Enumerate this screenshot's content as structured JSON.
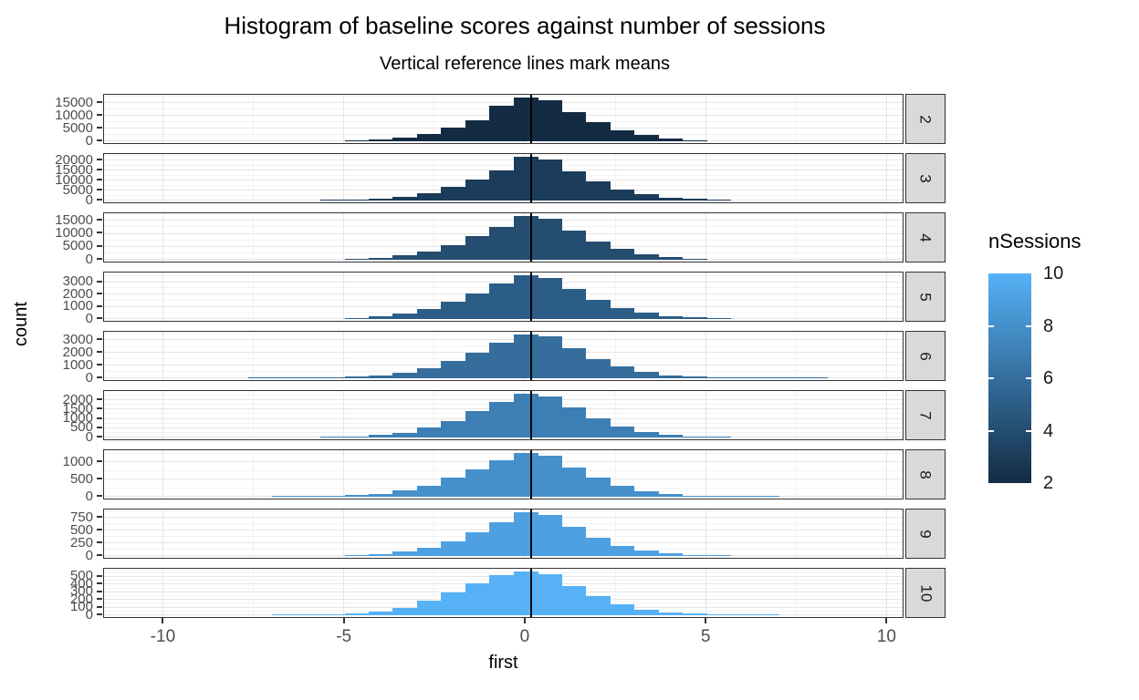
{
  "chart_data": {
    "type": "bar",
    "title": "Histogram of baseline scores against number of sessions",
    "subtitle": "Vertical reference lines mark means",
    "xlabel": "first",
    "ylabel": "count",
    "x_ticks": [
      -10,
      -5,
      0,
      5,
      10
    ],
    "x_minor_ticks": [
      -7.5,
      -2.5,
      2.5,
      7.5
    ],
    "x_range": [
      -11.65,
      10.47
    ],
    "bin_start": -7.633,
    "bin_width": 0.667,
    "grid": true,
    "legend_position": "right",
    "facets": [
      {
        "label": "2",
        "nSessions": 2,
        "fill": "#132B43",
        "mean": 0.2,
        "y_ticks": [
          15000,
          10000,
          5000,
          0
        ],
        "counts": [
          0,
          0,
          0,
          0,
          150,
          500,
          1300,
          2700,
          5100,
          8300,
          13800,
          17000,
          16200,
          11400,
          7400,
          4300,
          2300,
          1000,
          350,
          0,
          0,
          0,
          0,
          0
        ]
      },
      {
        "label": "3",
        "nSessions": 3,
        "fill": "#1B3C5A",
        "mean": 0.2,
        "y_ticks": [
          20000,
          15000,
          10000,
          5000,
          0
        ],
        "counts": [
          0,
          0,
          0,
          100,
          300,
          800,
          1800,
          3600,
          6500,
          10400,
          15000,
          21500,
          20400,
          14500,
          9300,
          5400,
          2900,
          1400,
          600,
          200,
          0,
          0,
          0,
          0
        ]
      },
      {
        "label": "4",
        "nSessions": 4,
        "fill": "#244D70",
        "mean": 0.2,
        "y_ticks": [
          15000,
          10000,
          5000,
          0
        ],
        "counts": [
          0,
          0,
          0,
          0,
          200,
          600,
          1500,
          3100,
          5600,
          8900,
          12600,
          16500,
          15600,
          11000,
          7000,
          4000,
          2100,
          900,
          300,
          0,
          0,
          0,
          0,
          0
        ]
      },
      {
        "label": "5",
        "nSessions": 5,
        "fill": "#2C5D87",
        "mean": 0.2,
        "y_ticks": [
          3000,
          2000,
          1000,
          0
        ],
        "counts": [
          0,
          0,
          0,
          0,
          80,
          200,
          430,
          820,
          1380,
          2050,
          2850,
          3500,
          3320,
          2400,
          1550,
          900,
          480,
          220,
          90,
          30,
          0,
          0,
          0,
          0
        ]
      },
      {
        "label": "6",
        "nSessions": 6,
        "fill": "#356E9D",
        "mean": 0.2,
        "y_ticks": [
          3000,
          2000,
          1000,
          0
        ],
        "counts": [
          10,
          15,
          20,
          40,
          90,
          200,
          420,
          800,
          1350,
          2000,
          2800,
          3400,
          3250,
          2350,
          1500,
          880,
          460,
          210,
          90,
          45,
          25,
          15,
          10,
          8
        ]
      },
      {
        "label": "7",
        "nSessions": 7,
        "fill": "#3D7FB4",
        "mean": 0.2,
        "y_ticks": [
          2000,
          1500,
          1000,
          500,
          0
        ],
        "counts": [
          0,
          0,
          0,
          15,
          40,
          110,
          250,
          500,
          880,
          1380,
          1900,
          2300,
          2180,
          1570,
          990,
          560,
          290,
          130,
          50,
          18,
          0,
          0,
          0,
          0
        ]
      },
      {
        "label": "8",
        "nSessions": 8,
        "fill": "#4590CA",
        "mean": 0.2,
        "y_ticks": [
          1000,
          500,
          0
        ],
        "counts": [
          0,
          5,
          8,
          15,
          35,
          80,
          170,
          320,
          540,
          790,
          1060,
          1250,
          1180,
          850,
          540,
          310,
          160,
          75,
          30,
          14,
          8,
          5,
          0,
          0
        ]
      },
      {
        "label": "9",
        "nSessions": 9,
        "fill": "#4EA0E1",
        "mean": 0.2,
        "y_ticks": [
          750,
          500,
          250,
          0
        ],
        "counts": [
          0,
          0,
          0,
          0,
          10,
          30,
          75,
          160,
          290,
          460,
          660,
          850,
          800,
          570,
          360,
          200,
          100,
          42,
          15,
          6,
          0,
          0,
          0,
          0
        ]
      },
      {
        "label": "10",
        "nSessions": 10,
        "fill": "#56B1F7",
        "mean": 0.2,
        "y_ticks": [
          500,
          400,
          300,
          200,
          100,
          0
        ],
        "counts": [
          0,
          4,
          6,
          10,
          20,
          45,
          95,
          180,
          290,
          410,
          520,
          560,
          530,
          380,
          240,
          135,
          70,
          32,
          16,
          9,
          6,
          4,
          0,
          0
        ]
      }
    ]
  },
  "legend": {
    "title": "nSessions",
    "ticks": [
      "10",
      "8",
      "6",
      "4",
      "2"
    ],
    "tick_values": [
      10,
      8,
      6,
      4,
      2
    ],
    "gradient_stops": [
      "#56B1F7",
      "#4590CA",
      "#356E9D",
      "#244D70",
      "#132B43"
    ]
  },
  "colors": {
    "panel_bg": "#FFFFFF",
    "strip_bg": "#D9D9D9",
    "grid_major": "#E5E5E5",
    "grid_minor": "#F2F2F2",
    "panel_border": "#333333",
    "tick_mark": "#333333",
    "tick_label": "#4D4D4D",
    "mean_line": "#000000"
  }
}
